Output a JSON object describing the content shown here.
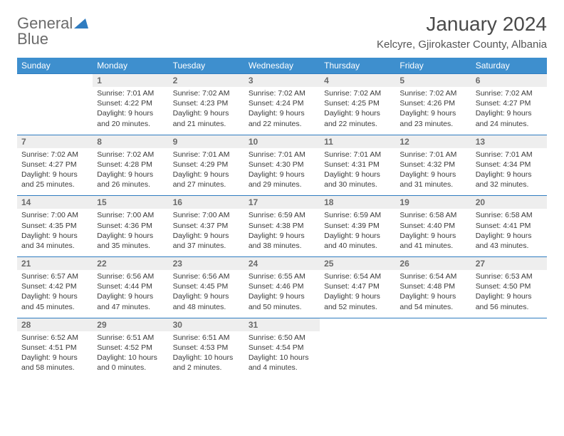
{
  "logo": {
    "line1": "General",
    "line2": "Blue"
  },
  "title": "January 2024",
  "location": "Kelcyre, Gjirokaster County, Albania",
  "colors": {
    "header_bg": "#3e8fce",
    "header_text": "#ffffff",
    "daynum_bg": "#eeeeee",
    "rule": "#2f7cc0",
    "text": "#3a3a3a",
    "muted": "#6a6a6a",
    "page_bg": "#ffffff"
  },
  "typography": {
    "title_fontsize": 28,
    "location_fontsize": 15,
    "dow_fontsize": 12,
    "daynum_fontsize": 12,
    "body_fontsize": 10.5
  },
  "days_of_week": [
    "Sunday",
    "Monday",
    "Tuesday",
    "Wednesday",
    "Thursday",
    "Friday",
    "Saturday"
  ],
  "weeks": [
    [
      null,
      {
        "n": "1",
        "sr": "7:01 AM",
        "ss": "4:22 PM",
        "dl": "9 hours and 20 minutes."
      },
      {
        "n": "2",
        "sr": "7:02 AM",
        "ss": "4:23 PM",
        "dl": "9 hours and 21 minutes."
      },
      {
        "n": "3",
        "sr": "7:02 AM",
        "ss": "4:24 PM",
        "dl": "9 hours and 22 minutes."
      },
      {
        "n": "4",
        "sr": "7:02 AM",
        "ss": "4:25 PM",
        "dl": "9 hours and 22 minutes."
      },
      {
        "n": "5",
        "sr": "7:02 AM",
        "ss": "4:26 PM",
        "dl": "9 hours and 23 minutes."
      },
      {
        "n": "6",
        "sr": "7:02 AM",
        "ss": "4:27 PM",
        "dl": "9 hours and 24 minutes."
      }
    ],
    [
      {
        "n": "7",
        "sr": "7:02 AM",
        "ss": "4:27 PM",
        "dl": "9 hours and 25 minutes."
      },
      {
        "n": "8",
        "sr": "7:02 AM",
        "ss": "4:28 PM",
        "dl": "9 hours and 26 minutes."
      },
      {
        "n": "9",
        "sr": "7:01 AM",
        "ss": "4:29 PM",
        "dl": "9 hours and 27 minutes."
      },
      {
        "n": "10",
        "sr": "7:01 AM",
        "ss": "4:30 PM",
        "dl": "9 hours and 29 minutes."
      },
      {
        "n": "11",
        "sr": "7:01 AM",
        "ss": "4:31 PM",
        "dl": "9 hours and 30 minutes."
      },
      {
        "n": "12",
        "sr": "7:01 AM",
        "ss": "4:32 PM",
        "dl": "9 hours and 31 minutes."
      },
      {
        "n": "13",
        "sr": "7:01 AM",
        "ss": "4:34 PM",
        "dl": "9 hours and 32 minutes."
      }
    ],
    [
      {
        "n": "14",
        "sr": "7:00 AM",
        "ss": "4:35 PM",
        "dl": "9 hours and 34 minutes."
      },
      {
        "n": "15",
        "sr": "7:00 AM",
        "ss": "4:36 PM",
        "dl": "9 hours and 35 minutes."
      },
      {
        "n": "16",
        "sr": "7:00 AM",
        "ss": "4:37 PM",
        "dl": "9 hours and 37 minutes."
      },
      {
        "n": "17",
        "sr": "6:59 AM",
        "ss": "4:38 PM",
        "dl": "9 hours and 38 minutes."
      },
      {
        "n": "18",
        "sr": "6:59 AM",
        "ss": "4:39 PM",
        "dl": "9 hours and 40 minutes."
      },
      {
        "n": "19",
        "sr": "6:58 AM",
        "ss": "4:40 PM",
        "dl": "9 hours and 41 minutes."
      },
      {
        "n": "20",
        "sr": "6:58 AM",
        "ss": "4:41 PM",
        "dl": "9 hours and 43 minutes."
      }
    ],
    [
      {
        "n": "21",
        "sr": "6:57 AM",
        "ss": "4:42 PM",
        "dl": "9 hours and 45 minutes."
      },
      {
        "n": "22",
        "sr": "6:56 AM",
        "ss": "4:44 PM",
        "dl": "9 hours and 47 minutes."
      },
      {
        "n": "23",
        "sr": "6:56 AM",
        "ss": "4:45 PM",
        "dl": "9 hours and 48 minutes."
      },
      {
        "n": "24",
        "sr": "6:55 AM",
        "ss": "4:46 PM",
        "dl": "9 hours and 50 minutes."
      },
      {
        "n": "25",
        "sr": "6:54 AM",
        "ss": "4:47 PM",
        "dl": "9 hours and 52 minutes."
      },
      {
        "n": "26",
        "sr": "6:54 AM",
        "ss": "4:48 PM",
        "dl": "9 hours and 54 minutes."
      },
      {
        "n": "27",
        "sr": "6:53 AM",
        "ss": "4:50 PM",
        "dl": "9 hours and 56 minutes."
      }
    ],
    [
      {
        "n": "28",
        "sr": "6:52 AM",
        "ss": "4:51 PM",
        "dl": "9 hours and 58 minutes."
      },
      {
        "n": "29",
        "sr": "6:51 AM",
        "ss": "4:52 PM",
        "dl": "10 hours and 0 minutes."
      },
      {
        "n": "30",
        "sr": "6:51 AM",
        "ss": "4:53 PM",
        "dl": "10 hours and 2 minutes."
      },
      {
        "n": "31",
        "sr": "6:50 AM",
        "ss": "4:54 PM",
        "dl": "10 hours and 4 minutes."
      },
      null,
      null,
      null
    ]
  ],
  "labels": {
    "sunrise": "Sunrise:",
    "sunset": "Sunset:",
    "daylight": "Daylight:"
  }
}
